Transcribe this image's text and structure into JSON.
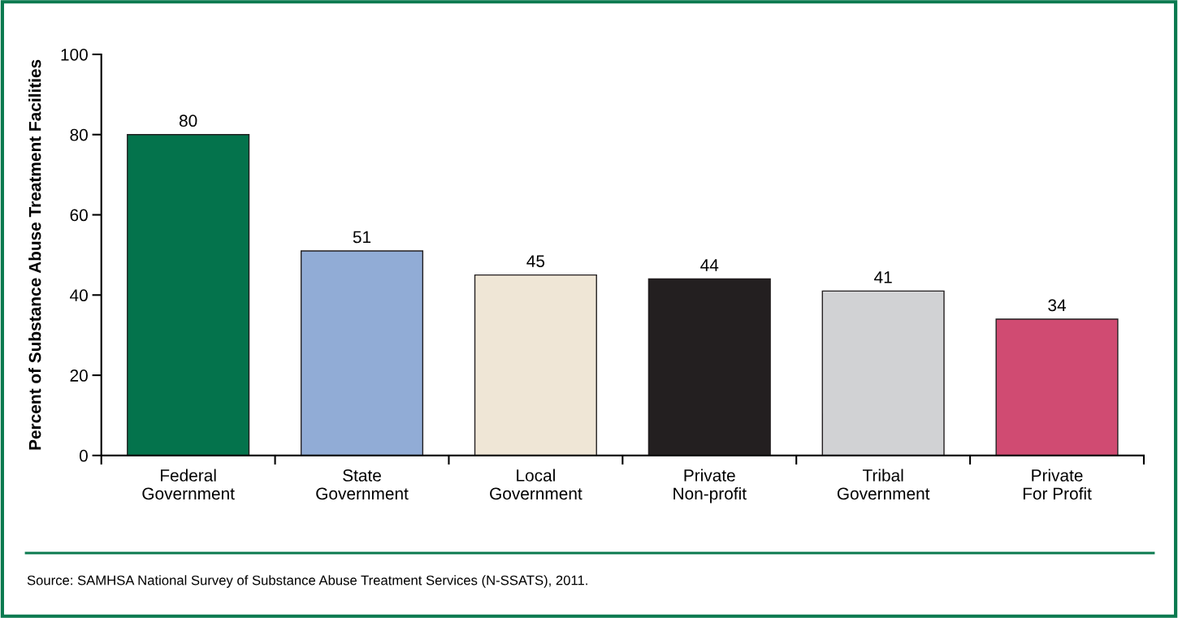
{
  "chart_data": {
    "type": "bar",
    "ylabel": "Percent of Substance Abuse Treatment Facilities",
    "categories": [
      "Federal\nGovernment",
      "State\nGovernment",
      "Local\nGovernment",
      "Private\nNon-profit",
      "Tribal\nGovernment",
      "Private\nFor Profit"
    ],
    "values": [
      80,
      51,
      45,
      44,
      41,
      34
    ],
    "colors": [
      "#04734c",
      "#91acd6",
      "#efe6d6",
      "#231f20",
      "#d1d2d4",
      "#d04b72"
    ],
    "ylim": [
      0,
      100
    ],
    "yticks": [
      0,
      20,
      40,
      60,
      80,
      100
    ],
    "grid": false,
    "data_labels": true,
    "annotations": [
      "Source: SAMHSA National Survey of Substance Abuse Treatment Services (N-SSATS), 2011."
    ]
  }
}
